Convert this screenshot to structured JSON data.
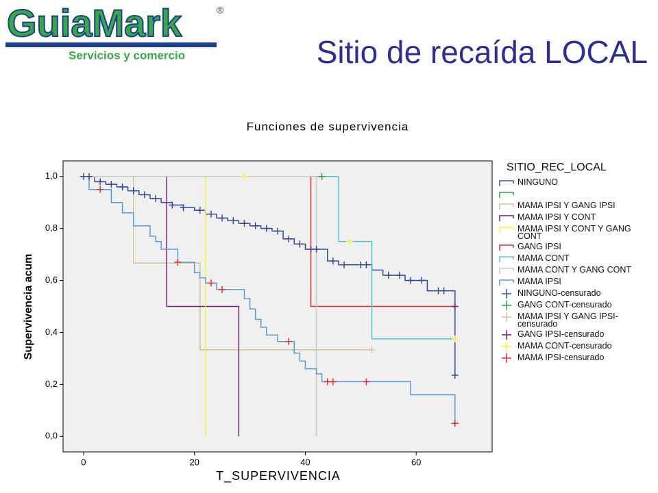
{
  "logo": {
    "name": "GuiaMark",
    "mark": "®",
    "tagline": "Servicios y comercio"
  },
  "slide_title": "Sitio de recaída LOCAL",
  "chart_data": {
    "type": "step",
    "title": "Funciones de supervivencia",
    "x_label": "T_SUPERVIVENCIA",
    "y_label": "Supervivencia acum",
    "legend_title": "SITIO_REC_LOCAL",
    "xlim": [
      -3.7,
      73.7
    ],
    "ylim": [
      -0.06,
      1.06
    ],
    "xticks": [
      0,
      20,
      40,
      60
    ],
    "yticks": [
      {
        "value": 0,
        "label": "0,0"
      },
      {
        "value": 0.2,
        "label": "0,2"
      },
      {
        "value": 0.4,
        "label": "0,4"
      },
      {
        "value": 0.6,
        "label": "0,6"
      },
      {
        "value": 0.8,
        "label": "0,8"
      },
      {
        "value": 1,
        "label": "1,0"
      }
    ],
    "series": [
      {
        "name": "NINGUNO",
        "style": "step",
        "color": "#3a4a9a",
        "x": [
          0,
          2,
          4,
          6,
          8,
          10,
          12,
          14,
          16,
          18,
          20,
          22,
          24,
          26,
          28,
          30,
          32,
          34,
          36,
          38,
          40,
          44,
          46,
          52,
          54,
          58,
          62,
          67
        ],
        "values": [
          1,
          0.98,
          0.97,
          0.96,
          0.945,
          0.93,
          0.915,
          0.9,
          0.89,
          0.88,
          0.87,
          0.855,
          0.84,
          0.83,
          0.82,
          0.81,
          0.8,
          0.79,
          0.76,
          0.74,
          0.72,
          0.675,
          0.66,
          0.64,
          0.62,
          0.6,
          0.56,
          0.235
        ]
      },
      {
        "name": null,
        "style": "step",
        "color": "#22aa33",
        "x": [
          0,
          43
        ],
        "values": [
          1,
          1
        ]
      },
      {
        "name": "MAMA IPSI Y GANG IPSI",
        "style": "step",
        "color": "#d2c39a",
        "x": [
          0,
          9,
          21,
          52
        ],
        "values": [
          1,
          0.667,
          0.333,
          0.333
        ]
      },
      {
        "name": "MAMA IPSI Y CONT",
        "style": "step",
        "color": "#7a1a7a",
        "x": [
          0,
          15,
          28
        ],
        "values": [
          1,
          0.5,
          0
        ]
      },
      {
        "name": "MAMA IPSI Y CONT Y GANG CONT",
        "style": "step",
        "color": "#f5f542",
        "x": [
          0,
          22
        ],
        "values": [
          1,
          0
        ]
      },
      {
        "name": "GANG IPSI",
        "style": "step",
        "color": "#e03030",
        "x": [
          0,
          41,
          67
        ],
        "values": [
          1,
          0.5,
          0.5
        ]
      },
      {
        "name": "MAMA CONT",
        "style": "step",
        "color": "#4cc3c8",
        "x": [
          0,
          46,
          52,
          67
        ],
        "values": [
          1,
          0.75,
          0.375,
          0.375
        ]
      },
      {
        "name": "MAMA CONT Y GANG CONT",
        "style": "step",
        "color": "#c8c8c8",
        "x": [
          0,
          42
        ],
        "values": [
          1,
          0
        ]
      },
      {
        "name": "MAMA IPSI",
        "style": "step",
        "color": "#5b9bd5",
        "x": [
          0,
          1,
          5,
          7,
          9,
          12,
          13,
          14,
          17,
          20,
          21,
          22,
          24,
          29,
          30,
          31,
          32,
          33,
          35,
          38,
          39,
          40,
          42,
          43,
          59,
          67
        ],
        "values": [
          1,
          0.95,
          0.9,
          0.86,
          0.81,
          0.77,
          0.75,
          0.72,
          0.67,
          0.63,
          0.61,
          0.59,
          0.565,
          0.53,
          0.49,
          0.45,
          0.42,
          0.39,
          0.365,
          0.32,
          0.29,
          0.26,
          0.24,
          0.21,
          0.16,
          0.05
        ]
      },
      {
        "name": "NINGUNO-censurado",
        "style": "censored",
        "color": "#3a4a9a",
        "x": [
          0,
          1,
          3,
          5,
          7,
          9,
          11,
          13,
          16,
          18,
          21,
          23,
          25,
          27,
          29,
          31,
          33,
          35,
          37,
          39,
          41,
          42,
          45,
          47,
          50,
          51,
          55,
          57,
          59,
          61,
          64,
          65,
          67
        ],
        "values": [
          1,
          1,
          0.98,
          0.97,
          0.96,
          0.945,
          0.93,
          0.915,
          0.89,
          0.88,
          0.87,
          0.855,
          0.84,
          0.83,
          0.82,
          0.81,
          0.8,
          0.79,
          0.76,
          0.74,
          0.72,
          0.72,
          0.675,
          0.66,
          0.66,
          0.66,
          0.62,
          0.62,
          0.6,
          0.6,
          0.56,
          0.56,
          0.235
        ]
      },
      {
        "name": "GANG CONT-censurado",
        "style": "censored",
        "color": "#22aa33",
        "x": [
          43
        ],
        "values": [
          1
        ]
      },
      {
        "name": "MAMA IPSI Y GANG IPSI-censurado",
        "style": "censored",
        "color": "#d2c39a",
        "x": [
          52
        ],
        "values": [
          0.333
        ]
      },
      {
        "name": "GANG IPSI-censurado",
        "style": "censored",
        "color": "#7a1a7a",
        "x": [
          67
        ],
        "values": [
          0.5
        ]
      },
      {
        "name": "MAMA CONT-censurado",
        "style": "censored",
        "color": "#f5f542",
        "x": [
          29,
          48,
          67
        ],
        "values": [
          1,
          0.75,
          0.375
        ]
      },
      {
        "name": "MAMA IPSI-censurado",
        "style": "censored",
        "color": "#e03030",
        "x": [
          3,
          17,
          23,
          25,
          37,
          44,
          45,
          51,
          67
        ],
        "values": [
          0.95,
          0.67,
          0.59,
          0.565,
          0.365,
          0.21,
          0.21,
          0.21,
          0.05
        ]
      }
    ]
  }
}
